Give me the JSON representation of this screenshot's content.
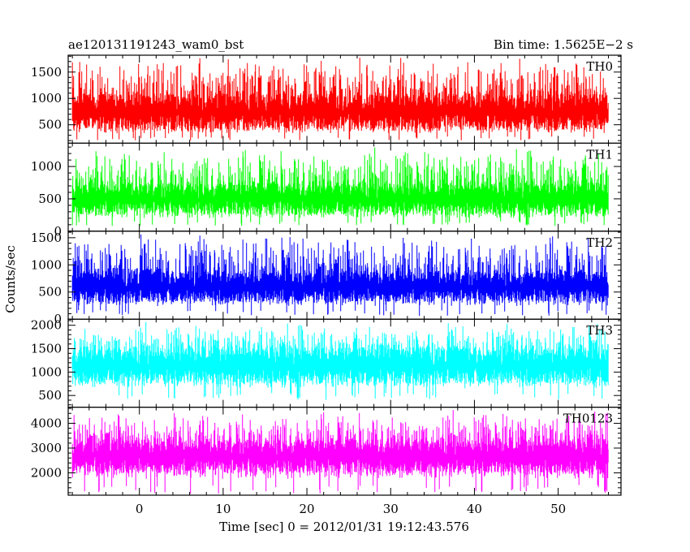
{
  "header": {
    "title": "ae120131191243_wam0_bst",
    "bin_time": "Bin time: 1.5625E−2 s"
  },
  "chart_data": {
    "type": "line",
    "xlabel": "Time [sec] 0 = 2012/01/31 19:12:43.576",
    "ylabel": "Counts/sec",
    "xlim": [
      -8.5,
      57.5
    ],
    "x_data_range": [
      -8,
      56
    ],
    "x_ticks": [
      0,
      10,
      20,
      30,
      40,
      50
    ],
    "x_tick_labels": [
      "0",
      "10",
      "20",
      "30",
      "40",
      "50"
    ],
    "x_minor_step": 2,
    "panels": [
      {
        "name": "TH0",
        "color": "#ff0000",
        "ylim": [
          150,
          1820
        ],
        "y_ticks": [
          500,
          1000,
          1500
        ],
        "y_tick_labels": [
          "500",
          "1000",
          "1500"
        ],
        "y_minor_step": 100,
        "mean": 730,
        "band_low": 400,
        "band_high": 1080,
        "min": 200,
        "max": 1800
      },
      {
        "name": "TH1",
        "color": "#00ff00",
        "ylim": [
          0,
          1360
        ],
        "y_ticks": [
          0,
          500,
          1000
        ],
        "y_tick_labels": [
          "0",
          "500",
          "1000"
        ],
        "y_minor_step": 100,
        "mean": 500,
        "band_low": 260,
        "band_high": 740,
        "min": 80,
        "max": 1320
      },
      {
        "name": "TH2",
        "color": "#0000ff",
        "ylim": [
          0,
          1620
        ],
        "y_ticks": [
          0,
          500,
          1000,
          1500
        ],
        "y_tick_labels": [
          "0",
          "500",
          "1000",
          "1500"
        ],
        "y_minor_step": 100,
        "mean": 600,
        "band_low": 330,
        "band_high": 870,
        "min": 60,
        "max": 1600
      },
      {
        "name": "TH3",
        "color": "#00ffff",
        "ylim": [
          250,
          2130
        ],
        "y_ticks": [
          500,
          1000,
          1500,
          2000
        ],
        "y_tick_labels": [
          "500",
          "1000",
          "1500",
          "2000"
        ],
        "y_minor_step": 100,
        "mean": 1150,
        "band_low": 780,
        "band_high": 1520,
        "min": 400,
        "max": 2100
      },
      {
        "name": "TH0123",
        "color": "#ff00ff",
        "ylim": [
          1100,
          4650
        ],
        "y_ticks": [
          2000,
          3000,
          4000
        ],
        "y_tick_labels": [
          "2000",
          "3000",
          "4000"
        ],
        "y_minor_step": 200,
        "mean": 2700,
        "band_low": 2050,
        "band_high": 3350,
        "min": 1150,
        "max": 4600
      }
    ]
  }
}
